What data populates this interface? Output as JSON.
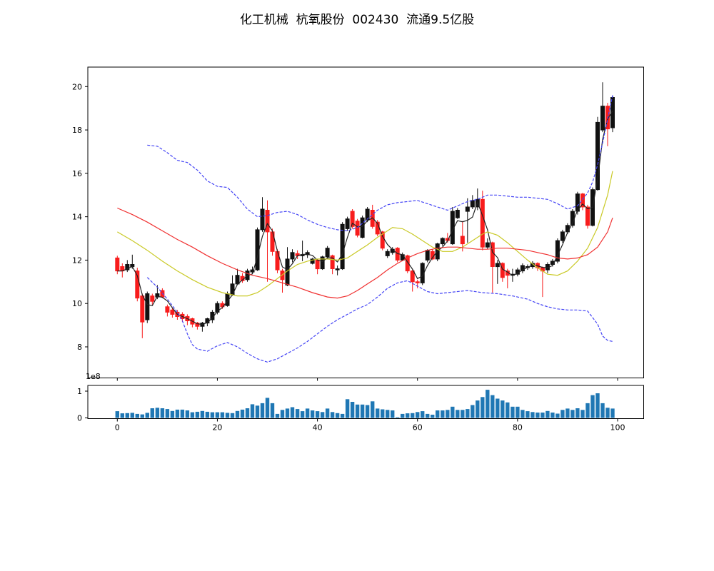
{
  "title": "化工机械  杭氧股份  002430  流通9.5亿股",
  "header": {
    "industry": "化工机械",
    "stock_name": "杭氧股份",
    "stock_code": "002430",
    "float_shares": "流通9.5亿股"
  },
  "price_axis": {
    "ticks": [
      8,
      10,
      12,
      14,
      16,
      18,
      20
    ]
  },
  "volume_axis": {
    "ticks": [
      0,
      1
    ],
    "offset_label": "1e8"
  },
  "x_axis": {
    "ticks": [
      0,
      20,
      40,
      60,
      80,
      100
    ]
  },
  "colors": {
    "background": "#ffffff",
    "axis": "#000000",
    "up_candle": "#111111",
    "down_candle": "#f81c1c",
    "ma_fast_black": "#222222",
    "ma_mid_yellow": "#c9c925",
    "ma_slow_red": "#f03030",
    "band_blue": "#4545f5",
    "volume_bar": "#1f77b4",
    "text": "#000000"
  },
  "chart_data": {
    "type": "candlestick",
    "panels": [
      "price",
      "volume"
    ],
    "x_start": 0,
    "x_step": 1,
    "xlim": [
      -6,
      105
    ],
    "ylim": [
      6.6,
      20.9
    ],
    "volume_ylim": [
      0,
      1.06
    ],
    "grid": false,
    "legend": "none",
    "candles_ohlc": [
      [
        12.1,
        12.2,
        11.35,
        11.5
      ],
      [
        11.7,
        11.85,
        11.2,
        11.5
      ],
      [
        11.55,
        12.0,
        11.45,
        11.8
      ],
      [
        11.7,
        12.25,
        11.6,
        11.8
      ],
      [
        11.5,
        11.65,
        10.1,
        10.25
      ],
      [
        10.35,
        10.45,
        8.4,
        9.15
      ],
      [
        9.25,
        10.55,
        9.1,
        10.45
      ],
      [
        10.35,
        10.45,
        9.95,
        10.1
      ],
      [
        10.3,
        10.85,
        10.2,
        10.45
      ],
      [
        10.6,
        10.7,
        10.25,
        10.3
      ],
      [
        9.85,
        9.95,
        9.4,
        9.6
      ],
      [
        9.7,
        9.8,
        9.35,
        9.5
      ],
      [
        9.6,
        9.7,
        9.25,
        9.4
      ],
      [
        9.5,
        9.6,
        9.15,
        9.3
      ],
      [
        9.4,
        9.5,
        9.0,
        9.2
      ],
      [
        9.3,
        9.35,
        8.9,
        9.05
      ],
      [
        9.1,
        9.15,
        8.8,
        8.95
      ],
      [
        8.95,
        9.15,
        8.7,
        9.1
      ],
      [
        9.1,
        9.35,
        8.95,
        9.3
      ],
      [
        9.25,
        9.7,
        9.1,
        9.6
      ],
      [
        9.6,
        10.1,
        9.5,
        10.0
      ],
      [
        10.0,
        10.1,
        9.75,
        9.85
      ],
      [
        9.9,
        10.55,
        9.85,
        10.45
      ],
      [
        10.4,
        11.3,
        10.35,
        10.9
      ],
      [
        10.9,
        11.6,
        10.85,
        11.3
      ],
      [
        11.25,
        11.4,
        10.95,
        11.05
      ],
      [
        11.1,
        11.6,
        11.0,
        11.5
      ],
      [
        11.45,
        11.7,
        11.35,
        11.55
      ],
      [
        11.55,
        13.5,
        11.5,
        13.4
      ],
      [
        13.4,
        14.9,
        13.3,
        14.35
      ],
      [
        14.3,
        14.75,
        11.0,
        13.3
      ],
      [
        13.3,
        13.45,
        12.2,
        12.4
      ],
      [
        12.4,
        12.5,
        11.4,
        11.55
      ],
      [
        11.5,
        11.6,
        10.5,
        11.1
      ],
      [
        10.85,
        12.6,
        10.8,
        12.05
      ],
      [
        12.05,
        12.5,
        11.9,
        12.35
      ],
      [
        12.3,
        12.45,
        12.05,
        12.2
      ],
      [
        12.2,
        12.9,
        11.95,
        12.25
      ],
      [
        12.25,
        12.45,
        12.1,
        12.35
      ],
      [
        11.85,
        12.1,
        11.8,
        12.05
      ],
      [
        12.0,
        12.05,
        11.35,
        11.6
      ],
      [
        11.6,
        12.2,
        11.55,
        12.15
      ],
      [
        12.15,
        12.65,
        12.05,
        12.55
      ],
      [
        12.2,
        12.25,
        11.35,
        11.6
      ],
      [
        11.55,
        11.75,
        11.3,
        11.6
      ],
      [
        11.6,
        13.75,
        11.55,
        13.65
      ],
      [
        13.45,
        14.0,
        13.35,
        13.9
      ],
      [
        14.25,
        14.35,
        13.45,
        13.55
      ],
      [
        13.8,
        13.9,
        13.05,
        13.15
      ],
      [
        13.05,
        14.05,
        13.0,
        13.95
      ],
      [
        13.85,
        14.45,
        13.75,
        14.35
      ],
      [
        14.3,
        14.55,
        13.45,
        13.55
      ],
      [
        13.75,
        13.85,
        13.1,
        13.2
      ],
      [
        13.3,
        13.35,
        12.45,
        12.55
      ],
      [
        12.2,
        12.5,
        12.1,
        12.4
      ],
      [
        12.35,
        12.6,
        12.25,
        12.5
      ],
      [
        12.55,
        12.6,
        11.9,
        12.0
      ],
      [
        12.0,
        12.35,
        11.95,
        12.25
      ],
      [
        12.2,
        12.25,
        11.4,
        11.5
      ],
      [
        11.5,
        11.55,
        10.55,
        11.0
      ],
      [
        11.0,
        11.1,
        10.7,
        10.95
      ],
      [
        10.95,
        11.9,
        10.85,
        11.85
      ],
      [
        12.0,
        12.5,
        11.9,
        12.45
      ],
      [
        12.4,
        12.5,
        12.0,
        12.05
      ],
      [
        12.05,
        12.8,
        11.95,
        12.75
      ],
      [
        12.75,
        13.05,
        12.65,
        13.0
      ],
      [
        13.0,
        13.25,
        12.8,
        12.9
      ],
      [
        12.75,
        14.45,
        12.7,
        14.25
      ],
      [
        13.95,
        14.4,
        13.9,
        14.3
      ],
      [
        13.1,
        13.8,
        12.4,
        12.75
      ],
      [
        14.25,
        14.85,
        12.8,
        14.45
      ],
      [
        14.45,
        15.0,
        14.35,
        14.75
      ],
      [
        14.45,
        15.3,
        14.3,
        14.8
      ],
      [
        14.8,
        15.2,
        12.45,
        12.6
      ],
      [
        12.6,
        13.0,
        12.5,
        12.8
      ],
      [
        12.8,
        12.85,
        10.5,
        11.7
      ],
      [
        11.7,
        12.0,
        10.9,
        11.85
      ],
      [
        11.85,
        11.9,
        11.0,
        11.2
      ],
      [
        11.5,
        11.6,
        10.7,
        11.3
      ],
      [
        11.3,
        11.6,
        11.0,
        11.35
      ],
      [
        11.35,
        11.65,
        11.25,
        11.55
      ],
      [
        11.5,
        11.85,
        11.4,
        11.75
      ],
      [
        11.65,
        11.8,
        11.55,
        11.7
      ],
      [
        11.7,
        11.95,
        11.6,
        11.85
      ],
      [
        11.85,
        11.9,
        11.5,
        11.65
      ],
      [
        11.65,
        11.7,
        10.3,
        11.5
      ],
      [
        11.55,
        11.9,
        11.4,
        11.8
      ],
      [
        11.8,
        12.05,
        11.7,
        11.95
      ],
      [
        11.95,
        13.0,
        11.85,
        12.9
      ],
      [
        12.9,
        13.4,
        12.8,
        13.3
      ],
      [
        13.3,
        13.7,
        13.2,
        13.6
      ],
      [
        13.6,
        14.35,
        13.5,
        14.25
      ],
      [
        14.25,
        15.15,
        14.1,
        15.05
      ],
      [
        15.05,
        15.1,
        14.3,
        14.45
      ],
      [
        14.45,
        14.55,
        13.45,
        13.6
      ],
      [
        13.6,
        15.35,
        13.55,
        15.25
      ],
      [
        15.25,
        18.6,
        15.2,
        18.35
      ],
      [
        18.0,
        20.2,
        17.9,
        19.1
      ],
      [
        19.1,
        19.25,
        17.25,
        18.05
      ],
      [
        18.1,
        19.6,
        17.9,
        19.5
      ]
    ],
    "volumes_1e8": [
      0.25,
      0.17,
      0.18,
      0.19,
      0.15,
      0.13,
      0.19,
      0.36,
      0.38,
      0.36,
      0.33,
      0.26,
      0.31,
      0.31,
      0.28,
      0.21,
      0.23,
      0.26,
      0.23,
      0.21,
      0.21,
      0.21,
      0.19,
      0.18,
      0.26,
      0.31,
      0.36,
      0.51,
      0.46,
      0.55,
      0.75,
      0.55,
      0.15,
      0.3,
      0.35,
      0.4,
      0.33,
      0.25,
      0.35,
      0.28,
      0.25,
      0.22,
      0.35,
      0.22,
      0.18,
      0.15,
      0.7,
      0.6,
      0.5,
      0.5,
      0.48,
      0.62,
      0.35,
      0.32,
      0.3,
      0.28,
      0.03,
      0.15,
      0.17,
      0.18,
      0.22,
      0.25,
      0.15,
      0.12,
      0.28,
      0.28,
      0.3,
      0.42,
      0.3,
      0.3,
      0.33,
      0.48,
      0.65,
      0.78,
      1.05,
      0.85,
      0.72,
      0.65,
      0.58,
      0.42,
      0.42,
      0.3,
      0.25,
      0.22,
      0.2,
      0.2,
      0.26,
      0.2,
      0.16,
      0.3,
      0.35,
      0.3,
      0.36,
      0.3,
      0.55,
      0.85,
      0.92,
      0.55,
      0.38,
      0.35
    ],
    "overlays": {
      "ma_fast_black": {
        "type": "sma",
        "period": 3,
        "source": "close"
      },
      "ma_slow_red": [
        [
          0,
          14.4
        ],
        [
          3,
          14.1
        ],
        [
          6,
          13.75
        ],
        [
          9,
          13.35
        ],
        [
          12,
          12.95
        ],
        [
          15,
          12.6
        ],
        [
          18,
          12.2
        ],
        [
          21,
          11.85
        ],
        [
          24,
          11.55
        ],
        [
          27,
          11.3
        ],
        [
          30,
          11.15
        ],
        [
          33,
          10.95
        ],
        [
          36,
          10.75
        ],
        [
          39,
          10.5
        ],
        [
          42,
          10.3
        ],
        [
          44,
          10.25
        ],
        [
          46,
          10.35
        ],
        [
          48,
          10.6
        ],
        [
          50,
          10.9
        ],
        [
          52,
          11.2
        ],
        [
          54,
          11.55
        ],
        [
          56,
          11.85
        ],
        [
          58,
          12.1
        ],
        [
          60,
          12.3
        ],
        [
          62,
          12.45
        ],
        [
          64,
          12.55
        ],
        [
          66,
          12.6
        ],
        [
          68,
          12.6
        ],
        [
          70,
          12.55
        ],
        [
          72,
          12.5
        ],
        [
          74,
          12.5
        ],
        [
          76,
          12.55
        ],
        [
          78,
          12.55
        ],
        [
          80,
          12.5
        ],
        [
          82,
          12.45
        ],
        [
          84,
          12.35
        ],
        [
          86,
          12.25
        ],
        [
          88,
          12.1
        ],
        [
          90,
          12.05
        ],
        [
          92,
          12.1
        ],
        [
          94,
          12.25
        ],
        [
          96,
          12.6
        ],
        [
          98,
          13.3
        ],
        [
          99,
          13.95
        ]
      ],
      "ma_mid_yellow": [
        [
          0,
          13.3
        ],
        [
          3,
          12.9
        ],
        [
          6,
          12.45
        ],
        [
          9,
          11.95
        ],
        [
          12,
          11.5
        ],
        [
          15,
          11.1
        ],
        [
          18,
          10.75
        ],
        [
          21,
          10.5
        ],
        [
          24,
          10.35
        ],
        [
          26,
          10.35
        ],
        [
          28,
          10.5
        ],
        [
          30,
          10.8
        ],
        [
          32,
          11.15
        ],
        [
          34,
          11.5
        ],
        [
          36,
          11.8
        ],
        [
          38,
          11.95
        ],
        [
          40,
          12.05
        ],
        [
          42,
          12.05
        ],
        [
          44,
          12.0
        ],
        [
          46,
          12.1
        ],
        [
          48,
          12.4
        ],
        [
          50,
          12.7
        ],
        [
          52,
          13.05
        ],
        [
          54,
          13.35
        ],
        [
          55,
          13.5
        ],
        [
          57,
          13.45
        ],
        [
          59,
          13.2
        ],
        [
          61,
          12.9
        ],
        [
          63,
          12.6
        ],
        [
          65,
          12.4
        ],
        [
          67,
          12.4
        ],
        [
          69,
          12.6
        ],
        [
          71,
          12.9
        ],
        [
          73,
          13.2
        ],
        [
          74,
          13.3
        ],
        [
          76,
          13.15
        ],
        [
          78,
          12.8
        ],
        [
          80,
          12.4
        ],
        [
          82,
          12.0
        ],
        [
          84,
          11.65
        ],
        [
          86,
          11.35
        ],
        [
          88,
          11.3
        ],
        [
          90,
          11.5
        ],
        [
          92,
          11.95
        ],
        [
          94,
          12.55
        ],
        [
          96,
          13.5
        ],
        [
          98,
          15.0
        ],
        [
          99,
          16.1
        ]
      ],
      "band_upper_blue_dashed": [
        [
          6,
          17.3
        ],
        [
          8,
          17.25
        ],
        [
          10,
          16.95
        ],
        [
          12,
          16.6
        ],
        [
          14,
          16.5
        ],
        [
          16,
          16.15
        ],
        [
          18,
          15.65
        ],
        [
          20,
          15.4
        ],
        [
          22,
          15.35
        ],
        [
          24,
          14.9
        ],
        [
          26,
          14.35
        ],
        [
          28,
          14.0
        ],
        [
          30,
          14.05
        ],
        [
          32,
          14.2
        ],
        [
          34,
          14.25
        ],
        [
          36,
          14.1
        ],
        [
          38,
          13.85
        ],
        [
          40,
          13.65
        ],
        [
          42,
          13.5
        ],
        [
          44,
          13.4
        ],
        [
          46,
          13.35
        ],
        [
          48,
          13.5
        ],
        [
          50,
          13.9
        ],
        [
          52,
          14.3
        ],
        [
          54,
          14.55
        ],
        [
          56,
          14.65
        ],
        [
          58,
          14.7
        ],
        [
          60,
          14.75
        ],
        [
          62,
          14.6
        ],
        [
          64,
          14.45
        ],
        [
          66,
          14.3
        ],
        [
          68,
          14.5
        ],
        [
          70,
          14.7
        ],
        [
          72,
          14.8
        ],
        [
          74,
          15.0
        ],
        [
          76,
          15.0
        ],
        [
          78,
          14.95
        ],
        [
          80,
          14.9
        ],
        [
          82,
          14.9
        ],
        [
          84,
          14.85
        ],
        [
          86,
          14.8
        ],
        [
          88,
          14.6
        ],
        [
          90,
          14.35
        ],
        [
          92,
          14.5
        ],
        [
          94,
          15.1
        ],
        [
          95,
          15.6
        ],
        [
          96,
          16.4
        ],
        [
          97,
          17.4
        ],
        [
          98,
          18.5
        ],
        [
          99,
          19.6
        ]
      ],
      "band_lower_blue_dashed": [
        [
          6,
          11.2
        ],
        [
          8,
          10.75
        ],
        [
          10,
          10.2
        ],
        [
          12,
          9.6
        ],
        [
          13,
          9.2
        ],
        [
          14,
          8.6
        ],
        [
          15,
          8.1
        ],
        [
          16,
          7.9
        ],
        [
          18,
          7.8
        ],
        [
          20,
          8.05
        ],
        [
          22,
          8.2
        ],
        [
          24,
          8.0
        ],
        [
          26,
          7.7
        ],
        [
          28,
          7.45
        ],
        [
          30,
          7.3
        ],
        [
          32,
          7.45
        ],
        [
          34,
          7.7
        ],
        [
          36,
          7.95
        ],
        [
          38,
          8.25
        ],
        [
          40,
          8.6
        ],
        [
          42,
          8.95
        ],
        [
          44,
          9.25
        ],
        [
          46,
          9.5
        ],
        [
          48,
          9.75
        ],
        [
          50,
          9.95
        ],
        [
          52,
          10.3
        ],
        [
          54,
          10.7
        ],
        [
          56,
          10.95
        ],
        [
          58,
          11.05
        ],
        [
          60,
          10.8
        ],
        [
          62,
          10.55
        ],
        [
          64,
          10.45
        ],
        [
          66,
          10.5
        ],
        [
          68,
          10.55
        ],
        [
          70,
          10.6
        ],
        [
          73,
          10.5
        ],
        [
          76,
          10.45
        ],
        [
          79,
          10.35
        ],
        [
          82,
          10.2
        ],
        [
          84,
          10.0
        ],
        [
          86,
          9.85
        ],
        [
          88,
          9.75
        ],
        [
          90,
          9.7
        ],
        [
          92,
          9.7
        ],
        [
          94,
          9.65
        ],
        [
          96,
          9.05
        ],
        [
          97,
          8.5
        ],
        [
          98,
          8.3
        ],
        [
          99,
          8.25
        ]
      ]
    }
  }
}
